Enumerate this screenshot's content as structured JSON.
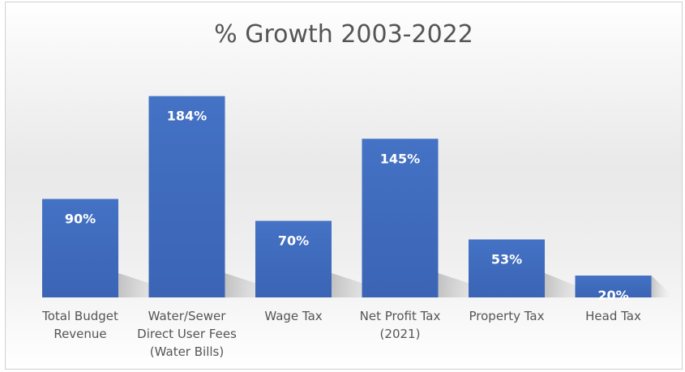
{
  "chart_data": {
    "type": "bar",
    "title": "% Growth 2003-2022",
    "categories": [
      [
        "Total Budget",
        "Revenue"
      ],
      [
        "Water/Sewer",
        "Direct User Fees",
        "(Water Bills)"
      ],
      [
        "Wage Tax"
      ],
      [
        "Net Profit Tax",
        "(2021)"
      ],
      [
        "Property Tax"
      ],
      [
        "Head Tax"
      ]
    ],
    "values": [
      90,
      184,
      70,
      145,
      53,
      20
    ],
    "data_labels": [
      "90%",
      "184%",
      "70%",
      "145%",
      "53%",
      "20%"
    ],
    "ylim": [
      0,
      200
    ],
    "grid": false,
    "legend": "none",
    "bar_color": "#3f6bc4",
    "label_color": "#ffffff"
  }
}
